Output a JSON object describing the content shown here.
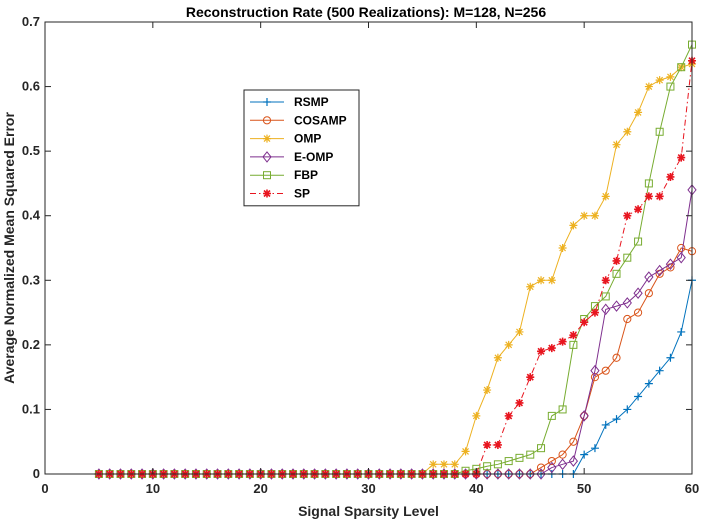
{
  "chart_data": {
    "type": "line",
    "title": "Reconstruction Rate (500 Realizations): M=128, N=256",
    "xlabel": "Signal Sparsity Level",
    "ylabel": "Average Normalized Mean Squared Error",
    "xlim": [
      0,
      60
    ],
    "ylim": [
      0,
      0.7
    ],
    "xticks": [
      0,
      10,
      20,
      30,
      40,
      50,
      60
    ],
    "yticks": [
      0,
      0.1,
      0.2,
      0.3,
      0.4,
      0.5,
      0.6,
      0.7
    ],
    "xtick_labels": [
      "0",
      "10",
      "20",
      "30",
      "40",
      "50",
      "60"
    ],
    "ytick_labels": [
      "0",
      "0.1",
      "0.2",
      "0.3",
      "0.4",
      "0.5",
      "0.6",
      "0.7"
    ],
    "legend_position": "upper-left",
    "x": [
      5,
      6,
      7,
      8,
      9,
      10,
      11,
      12,
      13,
      14,
      15,
      16,
      17,
      18,
      19,
      20,
      21,
      22,
      23,
      24,
      25,
      26,
      27,
      28,
      29,
      30,
      31,
      32,
      33,
      34,
      35,
      36,
      37,
      38,
      39,
      40,
      41,
      42,
      43,
      44,
      45,
      46,
      47,
      48,
      49,
      50,
      51,
      52,
      53,
      54,
      55,
      56,
      57,
      58,
      59,
      60
    ],
    "series": [
      {
        "name": "RSMP",
        "color": "#0072BD",
        "marker": "plus",
        "dash": "solid",
        "values": [
          0,
          0,
          0,
          0,
          0,
          0,
          0,
          0,
          0,
          0,
          0,
          0,
          0,
          0,
          0,
          0,
          0,
          0,
          0,
          0,
          0,
          0,
          0,
          0,
          0,
          0,
          0,
          0,
          0,
          0,
          0,
          0,
          0,
          0,
          0,
          0,
          0,
          0,
          0,
          0,
          0,
          0,
          0,
          0,
          0,
          0.03,
          0.04,
          0.076,
          0.085,
          0.1,
          0.12,
          0.14,
          0.16,
          0.18,
          0.22,
          0.3
        ]
      },
      {
        "name": "COSAMP",
        "color": "#D95319",
        "marker": "circle",
        "dash": "solid",
        "values": [
          0,
          0,
          0,
          0,
          0,
          0,
          0,
          0,
          0,
          0,
          0,
          0,
          0,
          0,
          0,
          0,
          0,
          0,
          0,
          0,
          0,
          0,
          0,
          0,
          0,
          0,
          0,
          0,
          0,
          0,
          0,
          0,
          0,
          0,
          0,
          0,
          0,
          0,
          0,
          0,
          0,
          0.01,
          0.02,
          0.03,
          0.05,
          0.09,
          0.15,
          0.16,
          0.18,
          0.24,
          0.25,
          0.28,
          0.31,
          0.32,
          0.35,
          0.345
        ]
      },
      {
        "name": "OMP",
        "color": "#EDB120",
        "marker": "asterisk",
        "dash": "solid",
        "values": [
          0,
          0,
          0,
          0,
          0,
          0,
          0,
          0,
          0,
          0,
          0,
          0,
          0,
          0,
          0,
          0,
          0,
          0,
          0,
          0,
          0,
          0,
          0,
          0,
          0,
          0,
          0,
          0,
          0,
          0,
          0,
          0.015,
          0.015,
          0.015,
          0.035,
          0.09,
          0.13,
          0.18,
          0.2,
          0.22,
          0.29,
          0.3,
          0.3,
          0.35,
          0.385,
          0.4,
          0.4,
          0.43,
          0.51,
          0.53,
          0.56,
          0.6,
          0.61,
          0.615,
          0.63,
          0.635
        ]
      },
      {
        "name": "E-OMP",
        "color": "#7E2F8E",
        "marker": "diamond",
        "dash": "solid",
        "values": [
          0,
          0,
          0,
          0,
          0,
          0,
          0,
          0,
          0,
          0,
          0,
          0,
          0,
          0,
          0,
          0,
          0,
          0,
          0,
          0,
          0,
          0,
          0,
          0,
          0,
          0,
          0,
          0,
          0,
          0,
          0,
          0,
          0,
          0,
          0,
          0,
          0,
          0,
          0,
          0,
          0,
          0,
          0.01,
          0.015,
          0.02,
          0.09,
          0.16,
          0.255,
          0.26,
          0.265,
          0.28,
          0.305,
          0.315,
          0.325,
          0.335,
          0.44
        ]
      },
      {
        "name": "FBP",
        "color": "#77AC30",
        "marker": "square",
        "dash": "solid",
        "values": [
          0,
          0,
          0,
          0,
          0,
          0,
          0,
          0,
          0,
          0,
          0,
          0,
          0,
          0,
          0,
          0,
          0,
          0,
          0,
          0,
          0,
          0,
          0,
          0,
          0,
          0,
          0,
          0,
          0,
          0,
          0,
          0,
          0,
          0,
          0.005,
          0.008,
          0.012,
          0.015,
          0.02,
          0.025,
          0.03,
          0.04,
          0.09,
          0.1,
          0.2,
          0.24,
          0.26,
          0.275,
          0.31,
          0.335,
          0.36,
          0.45,
          0.53,
          0.6,
          0.63,
          0.665
        ]
      },
      {
        "name": "SP",
        "color": "#E8151F",
        "marker": "star",
        "dash": "dashdot",
        "values": [
          0,
          0,
          0,
          0,
          0,
          0,
          0,
          0,
          0,
          0,
          0,
          0,
          0,
          0,
          0,
          0,
          0,
          0,
          0,
          0,
          0,
          0,
          0,
          0,
          0,
          0,
          0,
          0,
          0,
          0,
          0,
          0,
          0,
          0,
          0,
          0,
          0.045,
          0.045,
          0.09,
          0.11,
          0.15,
          0.19,
          0.195,
          0.205,
          0.215,
          0.235,
          0.25,
          0.3,
          0.33,
          0.4,
          0.41,
          0.43,
          0.43,
          0.46,
          0.49,
          0.64
        ]
      }
    ]
  }
}
